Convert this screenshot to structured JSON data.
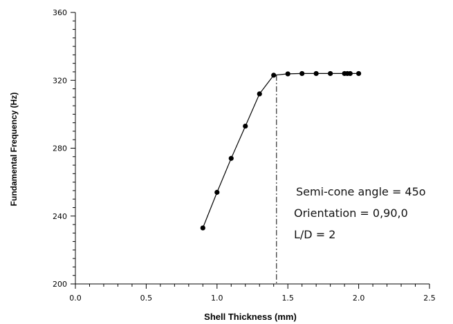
{
  "chart_data": {
    "type": "line",
    "title": "",
    "xlabel": "Shell Thickness (mm)",
    "ylabel": "Fundamental Frequency (Hz)",
    "xlim": [
      0.0,
      2.5
    ],
    "ylim": [
      200,
      360
    ],
    "x_ticks": [
      "0.0",
      "0.5",
      "1.0",
      "1.5",
      "2.0",
      "2.5"
    ],
    "y_ticks": [
      "200",
      "240",
      "280",
      "320",
      "360"
    ],
    "grid": false,
    "legend": "none",
    "series": [
      {
        "x": [
          0.9,
          1.0,
          1.1,
          1.2,
          1.3,
          1.4,
          1.5,
          1.6,
          1.7,
          1.8,
          1.9,
          1.92,
          1.94,
          2.0
        ],
        "y": [
          233,
          254,
          274,
          293,
          312,
          323,
          323.8,
          324,
          324,
          324,
          324,
          324,
          324,
          324
        ]
      }
    ],
    "vertical_line": {
      "x": 1.42,
      "style": "dash-dot"
    },
    "annotations": [
      "Semi-cone angle = 45o",
      "Orientation = 0,90,0",
      "L/D = 2"
    ]
  }
}
